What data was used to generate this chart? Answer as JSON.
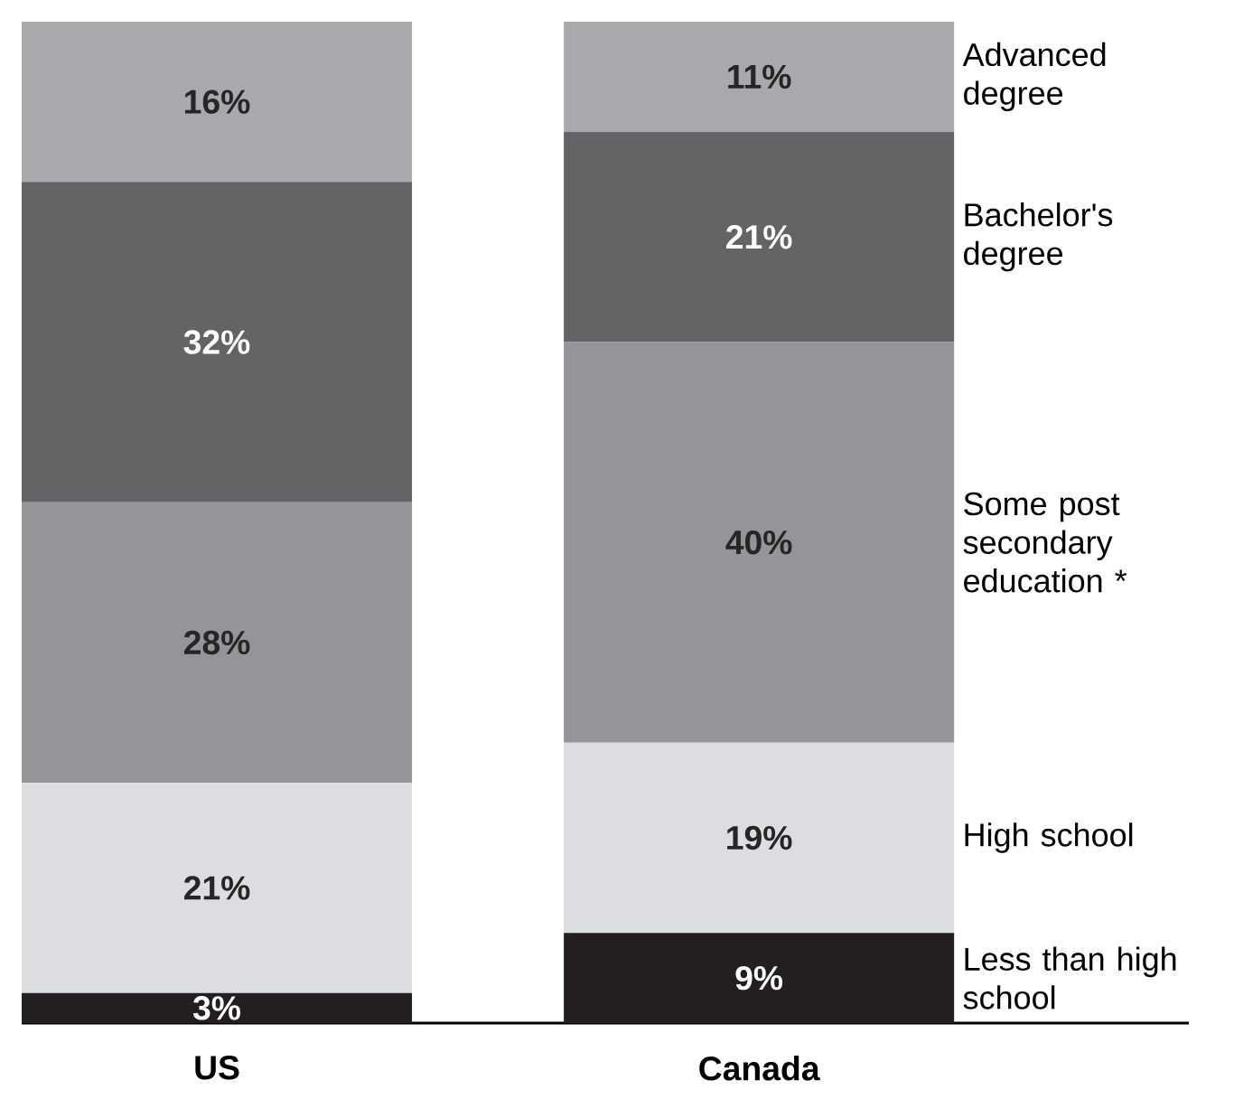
{
  "chart_data": {
    "type": "bar",
    "stacked": true,
    "categories": [
      "US",
      "Canada"
    ],
    "ylim": [
      0,
      100
    ],
    "tick_labels": "x",
    "series": [
      {
        "name": "Less than high school",
        "color": "#231f20",
        "values": [
          3,
          9
        ],
        "value_labels": [
          "3%",
          "9%"
        ]
      },
      {
        "name": "High school",
        "color": "#dcdde0",
        "values": [
          21,
          19
        ],
        "value_labels": [
          "21%",
          "19%"
        ]
      },
      {
        "name": "Some post secondary education *",
        "color": "#939598",
        "values": [
          28,
          40
        ],
        "value_labels": [
          "28%",
          "40%"
        ]
      },
      {
        "name": "Bachelor's degree",
        "color": "#636466",
        "values": [
          32,
          21
        ],
        "value_labels": [
          "32%",
          "21%"
        ]
      },
      {
        "name": "Advanced degree",
        "color": "#a7a9ac",
        "values": [
          16,
          11
        ],
        "value_labels": [
          "16%",
          "11%"
        ]
      }
    ]
  }
}
